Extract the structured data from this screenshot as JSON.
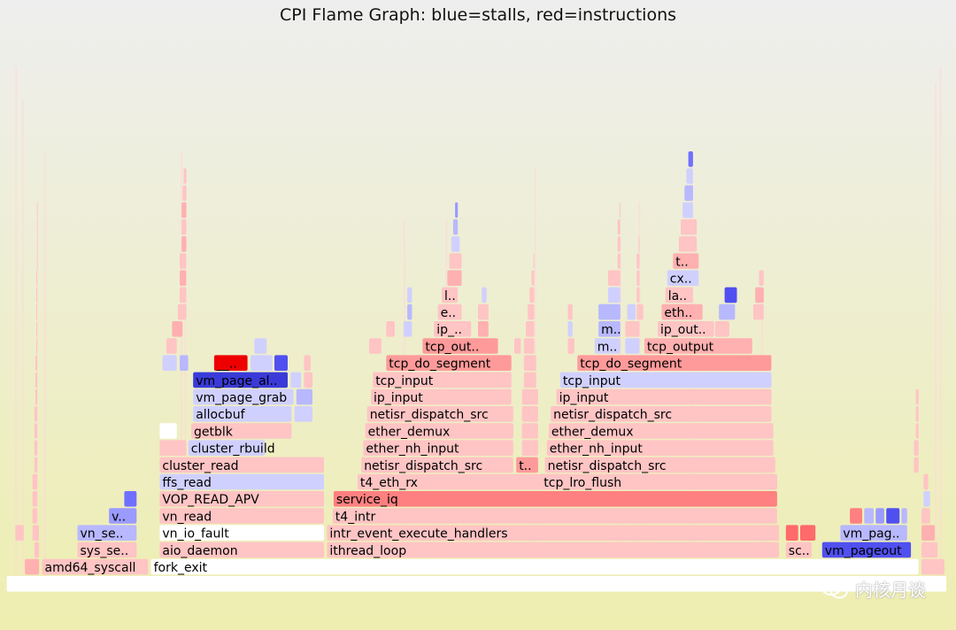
{
  "chart_data": {
    "type": "flamegraph",
    "title": "CPI Flame Graph: blue=stalls, red=instructions",
    "colors": {
      "root": "#ffffff",
      "p1": "#ffc4c4",
      "p2": "#ffb0b0",
      "p3": "#ff9a9a",
      "p4": "#ff8080",
      "p5": "#ff6a6a",
      "p6": "#ee0000",
      "b1": "#d0d0ff",
      "b2": "#b8b8ff",
      "b3": "#9a9aff",
      "b4": "#7070ff",
      "b5": "#5050f0",
      "b6": "#3a3ad8",
      "w": "#ffffff"
    },
    "frames": [
      {
        "d": 0,
        "s": 0.7,
        "e": 99.1,
        "c": "root",
        "t": ""
      },
      {
        "d": 1,
        "s": 2.6,
        "e": 4.2,
        "c": "p2",
        "t": ""
      },
      {
        "d": 1,
        "s": 4.4,
        "e": 15.6,
        "c": "p1",
        "t": "amd64_syscall"
      },
      {
        "d": 1,
        "s": 15.8,
        "e": 96.2,
        "c": "w",
        "t": "fork_exit"
      },
      {
        "d": 1,
        "s": 96.4,
        "e": 98.9,
        "c": "p1",
        "t": ""
      },
      {
        "d": 2,
        "s": 3.6,
        "e": 4.2,
        "c": "p1",
        "t": ""
      },
      {
        "d": 2,
        "s": 8.1,
        "e": 14.4,
        "c": "p1",
        "t": "sys_se.."
      },
      {
        "d": 2,
        "s": 16.7,
        "e": 34.0,
        "c": "p1",
        "t": "aio_daemon"
      },
      {
        "d": 2,
        "s": 34.2,
        "e": 81.6,
        "c": "p1",
        "t": "ithread_loop"
      },
      {
        "d": 2,
        "s": 82.2,
        "e": 85.0,
        "c": "p1",
        "t": "sc.."
      },
      {
        "d": 2,
        "s": 86.0,
        "e": 95.4,
        "c": "b5",
        "t": "vm_pageout"
      },
      {
        "d": 2,
        "s": 96.4,
        "e": 98.2,
        "c": "p1",
        "t": ""
      },
      {
        "d": 3,
        "s": 8.1,
        "e": 14.4,
        "c": "b2",
        "t": "vn_se.."
      },
      {
        "d": 3,
        "s": 16.7,
        "e": 34.0,
        "c": "w",
        "t": "vn_io_fault"
      },
      {
        "d": 3,
        "s": 34.2,
        "e": 81.6,
        "c": "p1",
        "t": "intr_event_execute_handlers"
      },
      {
        "d": 3,
        "s": 82.2,
        "e": 83.6,
        "c": "p5",
        "t": ""
      },
      {
        "d": 3,
        "s": 83.7,
        "e": 85.4,
        "c": "p5",
        "t": ""
      },
      {
        "d": 3,
        "s": 87.9,
        "e": 95.0,
        "c": "b2",
        "t": "vm_pag.."
      },
      {
        "d": 3,
        "s": 96.4,
        "e": 97.9,
        "c": "p2",
        "t": ""
      },
      {
        "d": 4,
        "s": 11.4,
        "e": 14.4,
        "c": "b3",
        "t": "v.."
      },
      {
        "d": 4,
        "s": 16.7,
        "e": 34.0,
        "c": "p1",
        "t": "vn_read"
      },
      {
        "d": 4,
        "s": 34.8,
        "e": 81.4,
        "c": "p1",
        "t": "t4_intr"
      },
      {
        "d": 4,
        "s": 88.9,
        "e": 90.3,
        "c": "p4",
        "t": ""
      },
      {
        "d": 4,
        "s": 90.4,
        "e": 91.5,
        "c": "b2",
        "t": ""
      },
      {
        "d": 4,
        "s": 91.6,
        "e": 92.6,
        "c": "b3",
        "t": ""
      },
      {
        "d": 4,
        "s": 92.7,
        "e": 94.2,
        "c": "b5",
        "t": ""
      },
      {
        "d": 4,
        "s": 94.3,
        "e": 95.0,
        "c": "b2",
        "t": ""
      },
      {
        "d": 5,
        "s": 13.0,
        "e": 14.4,
        "c": "b4",
        "t": ""
      },
      {
        "d": 5,
        "s": 16.7,
        "e": 34.0,
        "c": "p1",
        "t": "VOP_READ_APV"
      },
      {
        "d": 5,
        "s": 34.9,
        "e": 81.4,
        "c": "p4",
        "t": "service_iq"
      },
      {
        "d": 6,
        "s": 16.7,
        "e": 34.0,
        "c": "b1",
        "t": "ffs_read"
      },
      {
        "d": 6,
        "s": 37.4,
        "e": 81.4,
        "c": "p1",
        "t": "t4_eth_rx"
      },
      {
        "d": 6,
        "s": 56.6,
        "e": 81.4,
        "c": "p1",
        "t": "tcp_lro_flush"
      },
      {
        "d": 7,
        "s": 16.7,
        "e": 34.0,
        "c": "p1",
        "t": "cluster_read"
      },
      {
        "d": 7,
        "s": 37.8,
        "e": 53.8,
        "c": "p1",
        "t": "netisr_dispatch_src"
      },
      {
        "d": 7,
        "s": 54.0,
        "e": 56.4,
        "c": "p3",
        "t": "t.."
      },
      {
        "d": 7,
        "s": 57.0,
        "e": 81.2,
        "c": "p1",
        "t": "netisr_dispatch_src"
      },
      {
        "d": 8,
        "s": 16.7,
        "e": 19.6,
        "c": "p1",
        "t": ""
      },
      {
        "d": 8,
        "s": 19.7,
        "e": 27.8,
        "c": "b1",
        "t": "cluster_rbuild"
      },
      {
        "d": 8,
        "s": 38.0,
        "e": 53.8,
        "c": "p1",
        "t": "ether_nh_input"
      },
      {
        "d": 8,
        "s": 57.2,
        "e": 81.0,
        "c": "p1",
        "t": "ether_nh_input"
      },
      {
        "d": 9,
        "s": 16.7,
        "e": 18.6,
        "c": "w",
        "t": ""
      },
      {
        "d": 9,
        "s": 20.0,
        "e": 30.6,
        "c": "p1",
        "t": "getblk"
      },
      {
        "d": 9,
        "s": 38.2,
        "e": 53.8,
        "c": "p1",
        "t": "ether_demux"
      },
      {
        "d": 9,
        "s": 57.4,
        "e": 81.0,
        "c": "p1",
        "t": "ether_demux"
      },
      {
        "d": 10,
        "s": 20.2,
        "e": 30.6,
        "c": "b1",
        "t": "allocbuf"
      },
      {
        "d": 10,
        "s": 30.8,
        "e": 32.8,
        "c": "b1",
        "t": ""
      },
      {
        "d": 10,
        "s": 38.4,
        "e": 53.8,
        "c": "p1",
        "t": "netisr_dispatch_src"
      },
      {
        "d": 10,
        "s": 57.6,
        "e": 80.8,
        "c": "p1",
        "t": "netisr_dispatch_src"
      },
      {
        "d": 11,
        "s": 20.2,
        "e": 30.8,
        "c": "b1",
        "t": "vm_page_grab"
      },
      {
        "d": 11,
        "s": 31.0,
        "e": 32.8,
        "c": "b2",
        "t": ""
      },
      {
        "d": 11,
        "s": 38.8,
        "e": 53.6,
        "c": "p1",
        "t": "ip_input"
      },
      {
        "d": 11,
        "s": 58.2,
        "e": 80.8,
        "c": "p1",
        "t": "ip_input"
      },
      {
        "d": 12,
        "s": 20.2,
        "e": 30.2,
        "c": "b6",
        "t": "vm_page_al.."
      },
      {
        "d": 12,
        "s": 30.4,
        "e": 31.6,
        "c": "b1",
        "t": ""
      },
      {
        "d": 12,
        "s": 39.0,
        "e": 53.6,
        "c": "p1",
        "t": "tcp_input"
      },
      {
        "d": 12,
        "s": 58.6,
        "e": 80.8,
        "c": "b1",
        "t": "tcp_input"
      },
      {
        "d": 13,
        "s": 22.4,
        "e": 26.0,
        "c": "p6",
        "t": "__.."
      },
      {
        "d": 13,
        "s": 26.2,
        "e": 28.6,
        "c": "b1",
        "t": ""
      },
      {
        "d": 13,
        "s": 28.7,
        "e": 30.2,
        "c": "b5",
        "t": ""
      },
      {
        "d": 13,
        "s": 40.4,
        "e": 53.6,
        "c": "p3",
        "t": "tcp_do_segment"
      },
      {
        "d": 13,
        "s": 60.4,
        "e": 80.8,
        "c": "p3",
        "t": "tcp_do_segment"
      },
      {
        "d": 14,
        "s": 44.2,
        "e": 52.2,
        "c": "p3",
        "t": "tcp_out.."
      },
      {
        "d": 14,
        "s": 62.2,
        "e": 65.0,
        "c": "b1",
        "t": "m.."
      },
      {
        "d": 14,
        "s": 67.4,
        "e": 78.8,
        "c": "p2",
        "t": "tcp_output"
      },
      {
        "d": 15,
        "s": 45.4,
        "e": 49.4,
        "c": "p1",
        "t": "ip_.."
      },
      {
        "d": 15,
        "s": 62.6,
        "e": 65.0,
        "c": "b2",
        "t": "m.."
      },
      {
        "d": 15,
        "s": 68.8,
        "e": 74.8,
        "c": "p1",
        "t": "ip_out.."
      },
      {
        "d": 16,
        "s": 45.8,
        "e": 48.4,
        "c": "p1",
        "t": "e.."
      },
      {
        "d": 16,
        "s": 62.6,
        "e": 65.0,
        "c": "b2",
        "t": ""
      },
      {
        "d": 16,
        "s": 69.2,
        "e": 73.6,
        "c": "p2",
        "t": "eth.."
      },
      {
        "d": 16,
        "s": 75.2,
        "e": 77.0,
        "c": "b2",
        "t": ""
      },
      {
        "d": 17,
        "s": 46.2,
        "e": 48.0,
        "c": "p1",
        "t": "l.."
      },
      {
        "d": 17,
        "s": 69.6,
        "e": 72.6,
        "c": "p1",
        "t": "la.."
      },
      {
        "d": 17,
        "s": 75.8,
        "e": 77.2,
        "c": "b5",
        "t": ""
      },
      {
        "d": 18,
        "s": 69.8,
        "e": 73.2,
        "c": "b1",
        "t": "cx.."
      },
      {
        "d": 19,
        "s": 70.4,
        "e": 73.2,
        "c": "p2",
        "t": "t.."
      },
      {
        "d": 20,
        "s": 71.0,
        "e": 73.0,
        "c": "p1",
        "t": ""
      },
      {
        "d": 21,
        "s": 71.2,
        "e": 73.0,
        "c": "p1",
        "t": ""
      },
      {
        "d": 22,
        "s": 71.4,
        "e": 72.6,
        "c": "b1",
        "t": ""
      },
      {
        "d": 23,
        "s": 71.6,
        "e": 72.6,
        "c": "b2",
        "t": ""
      },
      {
        "d": 24,
        "s": 71.8,
        "e": 72.6,
        "c": "b1",
        "t": ""
      },
      {
        "d": 25,
        "s": 72.0,
        "e": 72.6,
        "c": "b4",
        "t": ""
      },
      {
        "d": 18,
        "s": 46.8,
        "e": 48.4,
        "c": "p2",
        "t": ""
      },
      {
        "d": 19,
        "s": 47.0,
        "e": 48.4,
        "c": "p1",
        "t": ""
      },
      {
        "d": 20,
        "s": 47.2,
        "e": 48.2,
        "c": "b1",
        "t": ""
      },
      {
        "d": 21,
        "s": 47.4,
        "e": 48.0,
        "c": "b2",
        "t": ""
      },
      {
        "d": 22,
        "s": 47.6,
        "e": 48.0,
        "c": "b3",
        "t": ""
      },
      {
        "d": 13,
        "s": 17.0,
        "e": 18.6,
        "c": "b1",
        "t": ""
      },
      {
        "d": 13,
        "s": 18.8,
        "e": 19.8,
        "c": "b2",
        "t": ""
      },
      {
        "d": 14,
        "s": 17.4,
        "e": 18.6,
        "c": "p1",
        "t": ""
      },
      {
        "d": 15,
        "s": 18.0,
        "e": 19.2,
        "c": "p2",
        "t": ""
      },
      {
        "d": 16,
        "s": 18.6,
        "e": 19.6,
        "c": "p1",
        "t": ""
      },
      {
        "d": 17,
        "s": 18.8,
        "e": 19.6,
        "c": "p1",
        "t": ""
      },
      {
        "d": 18,
        "s": 18.8,
        "e": 19.6,
        "c": "p2",
        "t": ""
      },
      {
        "d": 19,
        "s": 18.8,
        "e": 19.6,
        "c": "p1",
        "t": ""
      },
      {
        "d": 20,
        "s": 19.0,
        "e": 19.6,
        "c": "p2",
        "t": ""
      },
      {
        "d": 21,
        "s": 19.0,
        "e": 19.6,
        "c": "p1",
        "t": ""
      },
      {
        "d": 22,
        "s": 19.0,
        "e": 19.6,
        "c": "p2",
        "t": ""
      },
      {
        "d": 23,
        "s": 19.1,
        "e": 19.6,
        "c": "p1",
        "t": ""
      },
      {
        "d": 24,
        "s": 19.2,
        "e": 19.6,
        "c": "p1",
        "t": ""
      },
      {
        "d": 14,
        "s": 26.6,
        "e": 28.0,
        "c": "b1",
        "t": ""
      },
      {
        "d": 12,
        "s": 31.8,
        "e": 32.8,
        "c": "p1",
        "t": ""
      },
      {
        "d": 13,
        "s": 31.8,
        "e": 32.6,
        "c": "p1",
        "t": ""
      },
      {
        "d": 14,
        "s": 38.6,
        "e": 40.0,
        "c": "p1",
        "t": ""
      },
      {
        "d": 15,
        "s": 40.4,
        "e": 41.4,
        "c": "p1",
        "t": ""
      },
      {
        "d": 15,
        "s": 42.2,
        "e": 43.2,
        "c": "b1",
        "t": ""
      },
      {
        "d": 16,
        "s": 42.6,
        "e": 43.2,
        "c": "b2",
        "t": ""
      },
      {
        "d": 17,
        "s": 42.6,
        "e": 43.2,
        "c": "b1",
        "t": ""
      },
      {
        "d": 14,
        "s": 53.8,
        "e": 54.6,
        "c": "p1",
        "t": ""
      },
      {
        "d": 15,
        "s": 50.0,
        "e": 51.2,
        "c": "p2",
        "t": ""
      },
      {
        "d": 16,
        "s": 50.0,
        "e": 51.2,
        "c": "p1",
        "t": ""
      },
      {
        "d": 17,
        "s": 50.4,
        "e": 51.0,
        "c": "b1",
        "t": ""
      },
      {
        "d": 8,
        "s": 54.6,
        "e": 56.4,
        "c": "p1",
        "t": ""
      },
      {
        "d": 9,
        "s": 54.6,
        "e": 56.4,
        "c": "p1",
        "t": ""
      },
      {
        "d": 10,
        "s": 54.6,
        "e": 56.4,
        "c": "p1",
        "t": ""
      },
      {
        "d": 11,
        "s": 54.6,
        "e": 56.4,
        "c": "p1",
        "t": ""
      },
      {
        "d": 12,
        "s": 54.8,
        "e": 56.2,
        "c": "p1",
        "t": ""
      },
      {
        "d": 13,
        "s": 54.8,
        "e": 56.2,
        "c": "p1",
        "t": ""
      },
      {
        "d": 14,
        "s": 54.8,
        "e": 56.0,
        "c": "p1",
        "t": ""
      },
      {
        "d": 15,
        "s": 55.0,
        "e": 56.0,
        "c": "p1",
        "t": ""
      },
      {
        "d": 16,
        "s": 55.2,
        "e": 56.0,
        "c": "p1",
        "t": ""
      },
      {
        "d": 17,
        "s": 55.4,
        "e": 56.0,
        "c": "p1",
        "t": ""
      },
      {
        "d": 18,
        "s": 55.6,
        "e": 56.0,
        "c": "p1",
        "t": ""
      },
      {
        "d": 19,
        "s": 55.8,
        "e": 56.0,
        "c": "p1",
        "t": ""
      },
      {
        "d": 14,
        "s": 59.4,
        "e": 60.2,
        "c": "p1",
        "t": ""
      },
      {
        "d": 15,
        "s": 59.4,
        "e": 60.0,
        "c": "b1",
        "t": ""
      },
      {
        "d": 16,
        "s": 59.4,
        "e": 60.0,
        "c": "p1",
        "t": ""
      },
      {
        "d": 14,
        "s": 65.4,
        "e": 67.0,
        "c": "b1",
        "t": ""
      },
      {
        "d": 15,
        "s": 65.4,
        "e": 67.0,
        "c": "p1",
        "t": ""
      },
      {
        "d": 16,
        "s": 65.6,
        "e": 66.6,
        "c": "b1",
        "t": ""
      },
      {
        "d": 15,
        "s": 74.8,
        "e": 76.4,
        "c": "p1",
        "t": ""
      },
      {
        "d": 16,
        "s": 78.8,
        "e": 80.0,
        "c": "p1",
        "t": ""
      },
      {
        "d": 17,
        "s": 79.0,
        "e": 80.0,
        "c": "p2",
        "t": ""
      },
      {
        "d": 18,
        "s": 79.4,
        "e": 80.0,
        "c": "p1",
        "t": ""
      },
      {
        "d": 17,
        "s": 63.6,
        "e": 65.0,
        "c": "b1",
        "t": ""
      },
      {
        "d": 18,
        "s": 63.6,
        "e": 65.0,
        "c": "p1",
        "t": ""
      },
      {
        "d": 19,
        "s": 64.6,
        "e": 65.0,
        "c": "p1",
        "t": ""
      },
      {
        "d": 20,
        "s": 64.6,
        "e": 65.0,
        "c": "p1",
        "t": ""
      },
      {
        "d": 21,
        "s": 64.6,
        "e": 65.0,
        "c": "p1",
        "t": ""
      },
      {
        "d": 22,
        "s": 64.8,
        "e": 65.0,
        "c": "p1",
        "t": ""
      },
      {
        "d": 16,
        "s": 66.6,
        "e": 67.4,
        "c": "p1",
        "t": ""
      },
      {
        "d": 17,
        "s": 66.6,
        "e": 67.0,
        "c": "p1",
        "t": ""
      },
      {
        "d": 18,
        "s": 66.6,
        "e": 67.0,
        "c": "p1",
        "t": ""
      },
      {
        "d": 19,
        "s": 66.6,
        "e": 67.0,
        "c": "p1",
        "t": ""
      },
      {
        "d": 20,
        "s": 66.8,
        "e": 67.0,
        "c": "p1",
        "t": ""
      },
      {
        "d": 3,
        "s": 1.6,
        "e": 2.6,
        "c": "p1",
        "t": ""
      },
      {
        "d": 3,
        "s": 3.4,
        "e": 4.2,
        "c": "p1",
        "t": ""
      },
      {
        "d": 4,
        "s": 3.4,
        "e": 4.0,
        "c": "p1",
        "t": ""
      },
      {
        "d": 5,
        "s": 3.4,
        "e": 4.0,
        "c": "p1",
        "t": ""
      },
      {
        "d": 6,
        "s": 3.4,
        "e": 4.0,
        "c": "p1",
        "t": ""
      },
      {
        "d": 7,
        "s": 3.6,
        "e": 4.0,
        "c": "p1",
        "t": ""
      },
      {
        "d": 8,
        "s": 3.6,
        "e": 4.0,
        "c": "p1",
        "t": ""
      },
      {
        "d": 9,
        "s": 3.6,
        "e": 4.0,
        "c": "p1",
        "t": ""
      },
      {
        "d": 10,
        "s": 3.6,
        "e": 4.0,
        "c": "p1",
        "t": ""
      },
      {
        "d": 11,
        "s": 3.7,
        "e": 4.0,
        "c": "p1",
        "t": ""
      },
      {
        "d": 12,
        "s": 3.7,
        "e": 4.0,
        "c": "p1",
        "t": ""
      },
      {
        "d": 13,
        "s": 3.7,
        "e": 4.0,
        "c": "p1",
        "t": ""
      },
      {
        "d": 14,
        "s": 3.8,
        "e": 4.0,
        "c": "p1",
        "t": ""
      },
      {
        "d": 15,
        "s": 3.8,
        "e": 4.0,
        "c": "p1",
        "t": ""
      },
      {
        "d": 16,
        "s": 3.8,
        "e": 4.0,
        "c": "p1",
        "t": ""
      },
      {
        "d": 17,
        "s": 3.8,
        "e": 4.0,
        "c": "p1",
        "t": ""
      },
      {
        "d": 18,
        "s": 3.8,
        "e": 4.0,
        "c": "p1",
        "t": ""
      },
      {
        "d": 19,
        "s": 3.9,
        "e": 4.0,
        "c": "p1",
        "t": ""
      },
      {
        "d": 20,
        "s": 3.9,
        "e": 4.0,
        "c": "p1",
        "t": ""
      },
      {
        "d": 21,
        "s": 3.9,
        "e": 4.0,
        "c": "p1",
        "t": ""
      },
      {
        "d": 22,
        "s": 3.9,
        "e": 4.0,
        "c": "p1",
        "t": ""
      },
      {
        "d": 4,
        "s": 96.4,
        "e": 97.4,
        "c": "p1",
        "t": ""
      },
      {
        "d": 5,
        "s": 96.6,
        "e": 97.4,
        "c": "b1",
        "t": ""
      },
      {
        "d": 6,
        "s": 96.6,
        "e": 97.2,
        "c": "p1",
        "t": ""
      },
      {
        "d": 7,
        "s": 95.6,
        "e": 96.2,
        "c": "p1",
        "t": ""
      },
      {
        "d": 8,
        "s": 95.6,
        "e": 96.2,
        "c": "p1",
        "t": ""
      },
      {
        "d": 9,
        "s": 95.8,
        "e": 96.2,
        "c": "p1",
        "t": ""
      },
      {
        "d": 10,
        "s": 95.8,
        "e": 96.2,
        "c": "p1",
        "t": ""
      },
      {
        "d": 11,
        "s": 95.8,
        "e": 96.2,
        "c": "p1",
        "t": ""
      }
    ]
  },
  "watermark": {
    "text": "内核月谈"
  }
}
